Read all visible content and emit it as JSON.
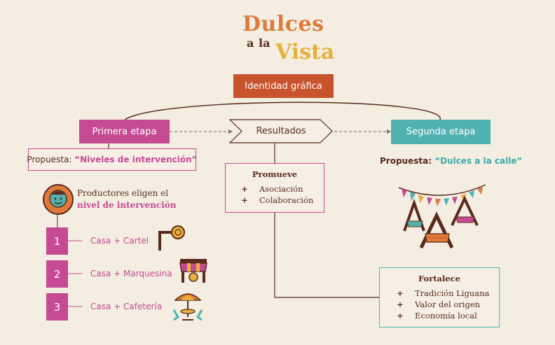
{
  "logo": {
    "word1": "Dulces",
    "word2a": "a",
    "word2b": "la",
    "word3": "Vista"
  },
  "identidad": "Identidad gráfica",
  "primera_etapa": "Primera etapa",
  "resultados": "Resultados",
  "segunda_etapa": "Segunda etapa",
  "propuesta_left": {
    "prefix": "Propuesta: ",
    "value": "“Niveles de intervención”"
  },
  "propuesta_right": {
    "prefix": "Propuesta: ",
    "value": "“Dulces a la calle”"
  },
  "productores": {
    "line1": "Productores eligen el",
    "line2": "nivel de intervención"
  },
  "levels": [
    {
      "num": "1",
      "label": "Casa + Cartel"
    },
    {
      "num": "2",
      "label": "Casa + Marquesina"
    },
    {
      "num": "3",
      "label": "Casa + Cafetería"
    }
  ],
  "promueve": {
    "title": "Promueve",
    "items": [
      "Asociación",
      "Colaboración"
    ]
  },
  "fortalece": {
    "title": "Fortalece",
    "items": [
      "Tradición Liguana",
      "Valor del origen",
      "Economía local"
    ]
  },
  "bullet": "+",
  "colors": {
    "background": "#f3ede2",
    "brown": "#5a2a1c",
    "orange": "#c8532d",
    "pink": "#c54a93",
    "teal": "#4fb2b1",
    "yellow": "#e8b13a"
  },
  "icons": [
    "producer-face-icon",
    "sign-icon",
    "awning-icon",
    "cafe-table-icon",
    "stalls-illustration"
  ]
}
